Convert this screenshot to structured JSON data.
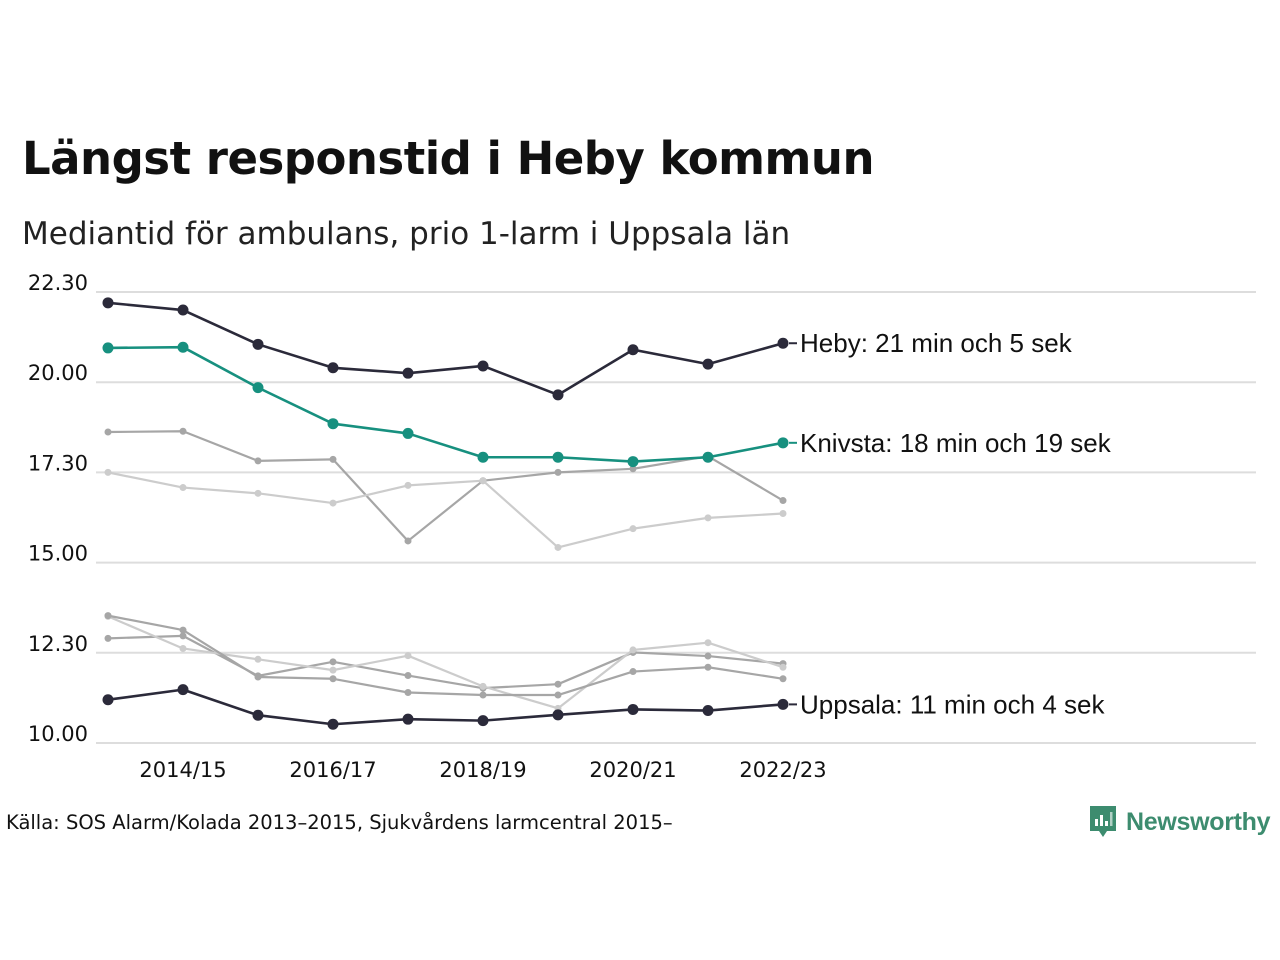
{
  "title": "Längst responstid i Heby kommun",
  "subtitle": "Mediantid för ambulans, prio 1-larm i Uppsala län",
  "source": "Källa: SOS Alarm/Kolada 2013–2015, Sjukvårdens larmcentral 2015–",
  "logo": {
    "text": "Newsworthy",
    "color": "#3d8c6f",
    "icon": "newsworthy-logo-icon"
  },
  "colors": {
    "highlight_dark": "#2b2a3a",
    "highlight_teal": "#17907f",
    "grey": "#a6a6a6",
    "light_grey": "#cccccc",
    "grid": "#dddddd"
  },
  "chart_data": {
    "type": "line",
    "title": "Längst responstid i Heby kommun",
    "subtitle": "Mediantid för ambulans, prio 1-larm i Uppsala län",
    "y_tick_labels": [
      "10.00",
      "12.30",
      "15.00",
      "17.30",
      "20.00",
      "22.30"
    ],
    "ylim": [
      10.0,
      22.5
    ],
    "y_unit": "minutes (tick labels in min.sec)",
    "x": [
      "2013/14",
      "2014/15",
      "2015/16",
      "2016/17",
      "2017/18",
      "2018/19",
      "2019/20",
      "2020/21",
      "2021/22",
      "2022/23"
    ],
    "x_tick_labels": [
      "2014/15",
      "2016/17",
      "2018/19",
      "2020/21",
      "2022/23"
    ],
    "grid": "horizontal",
    "series": [
      {
        "name": "Heby",
        "label": "Heby: 21 min och 5 sek",
        "color": "#2b2a3a",
        "emphasis": "highlight",
        "values": [
          22.2,
          22.0,
          21.05,
          20.4,
          20.25,
          20.45,
          19.65,
          20.9,
          20.5,
          21.08
        ]
      },
      {
        "name": "Knivsta",
        "label": "Knivsta: 18 min och 19 sek",
        "color": "#17907f",
        "emphasis": "highlight",
        "values": [
          20.95,
          20.97,
          19.85,
          18.85,
          18.58,
          17.92,
          17.92,
          17.8,
          17.92,
          18.32
        ]
      },
      {
        "name": "Uppsala",
        "label": "Uppsala: 11 min och 4 sek",
        "color": "#2b2a3a",
        "emphasis": "highlight",
        "values": [
          11.2,
          11.48,
          10.77,
          10.52,
          10.66,
          10.62,
          10.78,
          10.93,
          10.9,
          11.07
        ]
      },
      {
        "color": "#a6a6a6",
        "emphasis": "context",
        "values": [
          18.62,
          18.64,
          17.82,
          17.86,
          15.6,
          17.27,
          17.5,
          17.6,
          17.95,
          16.72
        ]
      },
      {
        "color": "#cccccc",
        "emphasis": "context",
        "values": [
          17.5,
          17.08,
          16.92,
          16.65,
          17.14,
          17.27,
          15.42,
          15.94,
          16.24,
          16.36
        ]
      },
      {
        "color": "#a6a6a6",
        "emphasis": "context",
        "values": [
          12.9,
          12.97,
          11.86,
          12.25,
          11.87,
          11.52,
          11.63,
          12.51,
          12.41,
          12.2
        ]
      },
      {
        "color": "#cccccc",
        "emphasis": "context",
        "values": [
          13.51,
          12.62,
          12.32,
          12.02,
          12.42,
          11.57,
          10.96,
          12.58,
          12.78,
          12.1
        ]
      },
      {
        "color": "#a6a6a6",
        "emphasis": "context",
        "values": [
          13.53,
          13.13,
          11.83,
          11.78,
          11.4,
          11.33,
          11.33,
          11.98,
          12.1,
          11.78
        ]
      }
    ]
  }
}
